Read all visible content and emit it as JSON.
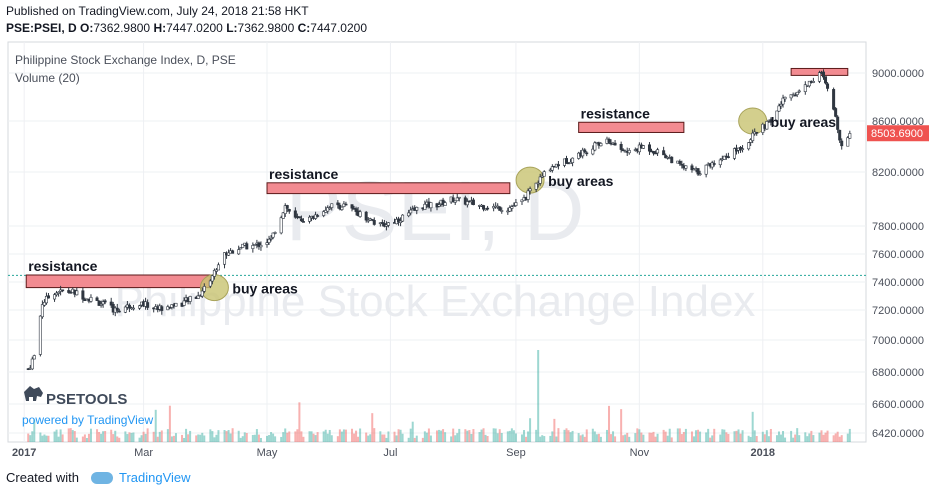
{
  "header": {
    "published": "Published on TradingView.com, July 24, 2018 21:58 HKT",
    "symbol_line": "PSE:PSEI, D",
    "ohlc": {
      "o_label": "O:",
      "o": "7362.9800",
      "h_label": "H:",
      "h": "7447.0200",
      "l_label": "L:",
      "l": "7362.9800",
      "c_label": "C:",
      "c": "7447.0200"
    }
  },
  "legend": {
    "title": "Philippine Stock Exchange Index, D, PSE",
    "volume": "Volume (20)"
  },
  "watermark": {
    "symbol": "PSEI, D",
    "name": "Philippine Stock Exchange Index"
  },
  "branding": {
    "logo_text": "PSETOOLS",
    "powered": "powered by TradingView"
  },
  "footer": {
    "created_with": "Created with",
    "brand": "TradingView"
  },
  "colors": {
    "up": "#26a69a",
    "down": "#ef5350",
    "resistance_fill": "#f28b91",
    "buy_fill": "#c8c370",
    "price_tag": "#ef5350",
    "grid": "#eef0f3"
  },
  "chart_data": {
    "type": "candlestick",
    "y_ticks": [
      6420,
      6600,
      6800,
      7000,
      7200,
      7400,
      7600,
      7800,
      8200,
      8600,
      9000
    ],
    "y_tick_labels": [
      "6420.0000",
      "6600.0000",
      "6800.0000",
      "7000.0000",
      "7200.0000",
      "7400.0000",
      "7600.0000",
      "7800.0000",
      "8200.0000",
      "8600.0000",
      "9000.0000"
    ],
    "x_ticks": [
      "2017",
      "Mar",
      "May",
      "Jul",
      "Sep",
      "Nov",
      "2018"
    ],
    "last_price_label": "8503.6900",
    "reference_line": 7447,
    "close_path": [
      [
        "2017-01-03",
        6820
      ],
      [
        "2017-01-06",
        6900
      ],
      [
        "2017-01-10",
        7250
      ],
      [
        "2017-01-16",
        7330
      ],
      [
        "2017-01-25",
        7330
      ],
      [
        "2017-02-06",
        7260
      ],
      [
        "2017-02-15",
        7200
      ],
      [
        "2017-02-27",
        7250
      ],
      [
        "2017-03-08",
        7210
      ],
      [
        "2017-03-20",
        7250
      ],
      [
        "2017-03-28",
        7300
      ],
      [
        "2017-04-03",
        7420
      ],
      [
        "2017-04-10",
        7600
      ],
      [
        "2017-04-18",
        7650
      ],
      [
        "2017-04-25",
        7660
      ],
      [
        "2017-05-03",
        7700
      ],
      [
        "2017-05-10",
        7950
      ],
      [
        "2017-05-15",
        7850
      ],
      [
        "2017-05-22",
        7850
      ],
      [
        "2017-06-01",
        7950
      ],
      [
        "2017-06-08",
        7950
      ],
      [
        "2017-06-15",
        7900
      ],
      [
        "2017-06-26",
        7800
      ],
      [
        "2017-07-05",
        7850
      ],
      [
        "2017-07-17",
        7950
      ],
      [
        "2017-07-24",
        7960
      ],
      [
        "2017-08-01",
        8000
      ],
      [
        "2017-08-15",
        7950
      ],
      [
        "2017-08-28",
        7930
      ],
      [
        "2017-09-04",
        7980
      ],
      [
        "2017-09-11",
        8110
      ],
      [
        "2017-09-18",
        8240
      ],
      [
        "2017-09-28",
        8300
      ],
      [
        "2017-10-09",
        8400
      ],
      [
        "2017-10-16",
        8450
      ],
      [
        "2017-10-26",
        8350
      ],
      [
        "2017-11-03",
        8400
      ],
      [
        "2017-11-13",
        8340
      ],
      [
        "2017-11-22",
        8240
      ],
      [
        "2017-11-30",
        8200
      ],
      [
        "2017-12-05",
        8250
      ],
      [
        "2017-12-13",
        8320
      ],
      [
        "2017-12-22",
        8400
      ],
      [
        "2017-12-28",
        8500
      ],
      [
        "2018-01-05",
        8600
      ],
      [
        "2018-01-12",
        8800
      ],
      [
        "2018-01-19",
        8850
      ],
      [
        "2018-01-26",
        8950
      ],
      [
        "2018-01-30",
        9000
      ],
      [
        "2018-02-05",
        8700
      ],
      [
        "2018-02-09",
        8400
      ],
      [
        "2018-02-13",
        8504
      ]
    ],
    "annotations": [
      {
        "type": "resistance",
        "label": "resistance",
        "start": "2017-01-02",
        "end": "2017-04-03",
        "low": 7360,
        "high": 7450
      },
      {
        "type": "resistance",
        "label": "resistance",
        "start": "2017-05-01",
        "end": "2017-08-29",
        "low": 8040,
        "high": 8120
      },
      {
        "type": "resistance",
        "label": "resistance",
        "start": "2017-10-02",
        "end": "2017-11-23",
        "low": 8510,
        "high": 8590
      },
      {
        "type": "resistance",
        "label": "",
        "start": "2018-01-15",
        "end": "2018-02-12",
        "low": 8980,
        "high": 9040
      },
      {
        "type": "buy",
        "label": "buy areas",
        "center": "2017-04-05",
        "price": 7360
      },
      {
        "type": "buy",
        "label": "buy areas",
        "center": "2017-09-08",
        "price": 8140
      },
      {
        "type": "buy",
        "label": "buy areas",
        "center": "2017-12-27",
        "price": 8600
      }
    ]
  }
}
